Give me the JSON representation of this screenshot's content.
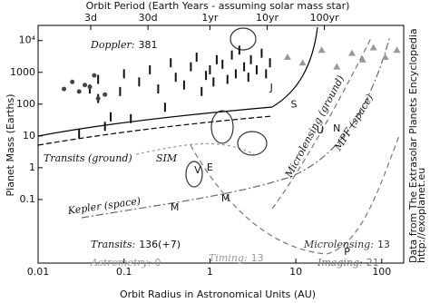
{
  "chart_data": {
    "type": "scatter",
    "title": "Orbit Period (Earth Years - assuming solar mass star)",
    "x_label": "Orbit Radius in Astronomical Units (AU)",
    "y_label": "Planet Mass (Earths)",
    "log_x": true,
    "log_y": true,
    "xlim": [
      0.01,
      180
    ],
    "ylim": [
      0.001,
      30000
    ],
    "xticks": [
      0.01,
      0.1,
      1,
      10,
      100
    ],
    "yticks": [
      0.1,
      1,
      10,
      100,
      1000,
      {
        "value": 10000,
        "label": "10⁴"
      }
    ],
    "top_ticks": [
      {
        "value": 0.041,
        "label": "3d"
      },
      {
        "value": 0.19,
        "label": "30d"
      },
      {
        "value": 1,
        "label": "1yr"
      },
      {
        "value": 4.64,
        "label": "10yr"
      },
      {
        "value": 21.5,
        "label": "100yr"
      }
    ],
    "series": [
      {
        "name": "Doppler",
        "color": "#111111",
        "marker": "bar",
        "x": [
          0.03,
          0.04,
          0.05,
          0.05,
          0.06,
          0.07,
          0.09,
          0.1,
          0.12,
          0.15,
          0.2,
          0.25,
          0.3,
          0.35,
          0.4,
          0.5,
          0.6,
          0.7,
          0.8,
          0.9,
          1,
          1.1,
          1.2,
          1.4,
          1.6,
          1.8,
          2,
          2.2,
          2.5,
          2.8,
          3,
          3.5,
          4,
          4.5,
          5
        ],
        "y": [
          12,
          300,
          150,
          600,
          20,
          40,
          250,
          900,
          35,
          500,
          1200,
          300,
          80,
          2000,
          700,
          400,
          1500,
          3000,
          250,
          800,
          1200,
          500,
          2500,
          1800,
          600,
          3500,
          900,
          5000,
          1500,
          700,
          2500,
          1200,
          4000,
          900,
          2000
        ]
      },
      {
        "name": "Transits",
        "color": "#444444",
        "marker": "dot",
        "x": [
          0.02,
          0.025,
          0.03,
          0.035,
          0.04,
          0.045,
          0.05,
          0.06
        ],
        "y": [
          300,
          500,
          250,
          400,
          350,
          800,
          150,
          200
        ]
      },
      {
        "name": "Imaging",
        "color": "#999999",
        "marker": "tri",
        "x": [
          8,
          12,
          20,
          30,
          45,
          60,
          80,
          110,
          150
        ],
        "y": [
          3000,
          2000,
          5000,
          1500,
          4000,
          2500,
          6000,
          3000,
          5000
        ]
      },
      {
        "name": "Solar System",
        "color": "#222222",
        "marker": "letter",
        "x": [
          0.39,
          0.72,
          1,
          1.52,
          5.2,
          9.5,
          19.2,
          30,
          39.5
        ],
        "y": [
          0.055,
          0.815,
          1,
          0.107,
          318,
          95,
          14.5,
          17,
          0.0022
        ],
        "labels": [
          "M",
          "V",
          "E",
          "M",
          "J",
          "S",
          "U",
          "N",
          "P"
        ]
      }
    ],
    "annotations": [
      {
        "text": "Doppler:",
        "value": "381"
      },
      {
        "text": "Transits:",
        "value": "136(+7)"
      },
      {
        "text": "Astrometry:",
        "value": "0"
      },
      {
        "text": "Timing:",
        "value": "13"
      },
      {
        "text": "Microlensing:",
        "value": "13"
      },
      {
        "text": "Imaging:",
        "value": "21"
      }
    ],
    "regions": [
      "Transits (ground)",
      "Kepler (space)",
      "SIM",
      "Microlensing (ground)",
      "MPF (space)"
    ],
    "credit": [
      "Data from The Extrasolar Planets Encyclopedia",
      "http://exoplanet.eu"
    ]
  }
}
